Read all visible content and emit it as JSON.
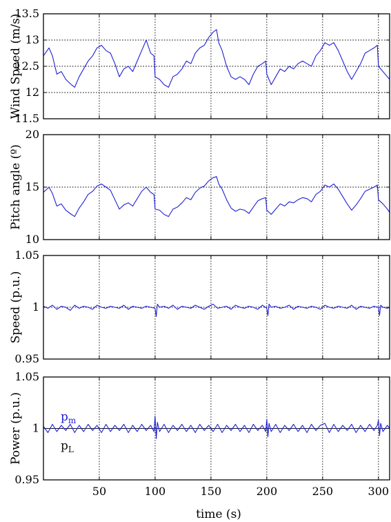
{
  "colors": {
    "series_blue": "#1f1fd6",
    "series_black": "#111111",
    "frame": "#000000"
  },
  "shared_xlabel": "time (s)",
  "chart_data": [
    {
      "type": "line",
      "title": "",
      "ylabel": "Wind Speed (m/s)",
      "xlabel": "",
      "xlim": [
        0,
        310
      ],
      "ylim": [
        11.5,
        13.5
      ],
      "x_ticks": [
        50,
        100,
        150,
        200,
        250,
        300
      ],
      "y_ticks": [
        11.5,
        12,
        12.5,
        13,
        13.5
      ],
      "y_tick_labels": [
        "11.5",
        "12",
        "12.5",
        "13",
        "13.5"
      ],
      "grid": true,
      "legend": null,
      "series": [
        {
          "color": "#1f1fd6",
          "x": [
            0,
            5,
            8,
            12,
            16,
            20,
            25,
            28,
            32,
            36,
            40,
            44,
            48,
            52,
            56,
            60,
            64,
            68,
            72,
            76,
            80,
            84,
            88,
            92,
            96,
            99,
            100,
            104,
            108,
            112,
            116,
            120,
            124,
            128,
            132,
            136,
            140,
            144,
            148,
            152,
            155,
            157,
            160,
            164,
            168,
            172,
            176,
            180,
            184,
            188,
            192,
            196,
            199,
            200,
            204,
            208,
            212,
            216,
            220,
            224,
            228,
            232,
            236,
            240,
            244,
            248,
            252,
            256,
            260,
            264,
            268,
            272,
            276,
            280,
            284,
            288,
            292,
            296,
            299,
            300,
            304,
            308,
            310
          ],
          "y": [
            12.7,
            12.85,
            12.7,
            12.35,
            12.4,
            12.25,
            12.15,
            12.1,
            12.3,
            12.45,
            12.6,
            12.7,
            12.85,
            12.9,
            12.8,
            12.75,
            12.55,
            12.3,
            12.45,
            12.5,
            12.4,
            12.6,
            12.8,
            13.0,
            12.75,
            12.7,
            12.3,
            12.25,
            12.15,
            12.1,
            12.3,
            12.35,
            12.45,
            12.6,
            12.55,
            12.75,
            12.85,
            12.9,
            13.05,
            13.15,
            13.2,
            12.95,
            12.8,
            12.5,
            12.3,
            12.25,
            12.3,
            12.25,
            12.15,
            12.35,
            12.5,
            12.55,
            12.6,
            12.35,
            12.15,
            12.3,
            12.45,
            12.4,
            12.5,
            12.45,
            12.55,
            12.6,
            12.55,
            12.5,
            12.7,
            12.8,
            12.95,
            12.9,
            12.95,
            12.8,
            12.6,
            12.4,
            12.25,
            12.4,
            12.55,
            12.75,
            12.8,
            12.85,
            12.9,
            12.5,
            12.4,
            12.3,
            12.25
          ]
        }
      ]
    },
    {
      "type": "line",
      "title": "",
      "ylabel": "Pitch angle (º)",
      "xlabel": "",
      "xlim": [
        0,
        310
      ],
      "ylim": [
        10,
        20
      ],
      "x_ticks": [
        50,
        100,
        150,
        200,
        250,
        300
      ],
      "y_ticks": [
        10,
        15,
        20
      ],
      "y_tick_labels": [
        "10",
        "15",
        "20"
      ],
      "grid": true,
      "legend": null,
      "series": [
        {
          "color": "#1f1fd6",
          "x": [
            0,
            5,
            8,
            12,
            16,
            20,
            25,
            28,
            32,
            36,
            40,
            44,
            48,
            52,
            56,
            60,
            64,
            68,
            72,
            76,
            80,
            84,
            88,
            92,
            96,
            99,
            100,
            104,
            108,
            112,
            116,
            120,
            124,
            128,
            132,
            136,
            140,
            144,
            148,
            152,
            155,
            157,
            160,
            164,
            168,
            172,
            176,
            180,
            184,
            188,
            192,
            196,
            199,
            200,
            204,
            208,
            212,
            216,
            220,
            224,
            228,
            232,
            236,
            240,
            244,
            248,
            252,
            256,
            260,
            264,
            268,
            272,
            276,
            280,
            284,
            288,
            292,
            296,
            299,
            300,
            304,
            308,
            310
          ],
          "y": [
            14.5,
            15.0,
            14.4,
            13.2,
            13.4,
            12.8,
            12.4,
            12.2,
            13.0,
            13.6,
            14.3,
            14.6,
            15.1,
            15.3,
            15.0,
            14.7,
            13.8,
            12.9,
            13.3,
            13.5,
            13.2,
            13.9,
            14.6,
            15.0,
            14.5,
            14.3,
            12.9,
            12.8,
            12.4,
            12.2,
            12.9,
            13.1,
            13.5,
            14.0,
            13.8,
            14.5,
            14.9,
            15.1,
            15.6,
            15.9,
            16.0,
            15.3,
            14.8,
            13.8,
            13.0,
            12.7,
            12.9,
            12.8,
            12.5,
            13.1,
            13.7,
            13.9,
            14.0,
            12.8,
            12.4,
            12.9,
            13.4,
            13.2,
            13.6,
            13.5,
            13.8,
            14.0,
            13.9,
            13.6,
            14.3,
            14.6,
            15.2,
            15.0,
            15.3,
            14.8,
            14.1,
            13.4,
            12.8,
            13.3,
            13.9,
            14.6,
            14.8,
            15.0,
            15.2,
            13.8,
            13.4,
            12.9,
            12.6
          ]
        }
      ]
    },
    {
      "type": "line",
      "title": "",
      "ylabel": "Speed (p.u.)",
      "xlabel": "",
      "xlim": [
        0,
        310
      ],
      "ylim": [
        0.95,
        1.05
      ],
      "x_ticks": [
        50,
        100,
        150,
        200,
        250,
        300
      ],
      "y_ticks": [
        0.95,
        1,
        1.05
      ],
      "y_tick_labels": [
        "0.95",
        "1",
        "1.05"
      ],
      "grid": true,
      "legend": null,
      "series": [
        {
          "color": "#1f1fd6",
          "x": [
            0,
            4,
            8,
            12,
            16,
            20,
            24,
            28,
            32,
            36,
            40,
            44,
            48,
            52,
            56,
            60,
            64,
            68,
            72,
            76,
            80,
            84,
            88,
            92,
            96,
            100,
            101,
            102,
            104,
            108,
            112,
            116,
            120,
            124,
            128,
            132,
            136,
            140,
            144,
            148,
            152,
            156,
            160,
            164,
            168,
            172,
            176,
            180,
            184,
            188,
            192,
            196,
            200,
            201,
            202,
            204,
            208,
            212,
            216,
            220,
            224,
            228,
            232,
            236,
            240,
            244,
            248,
            252,
            256,
            260,
            264,
            268,
            272,
            276,
            280,
            284,
            288,
            292,
            296,
            300,
            301,
            302,
            304,
            308,
            310
          ],
          "y": [
            1.001,
            0.999,
            1.002,
            0.998,
            1.001,
            1.0,
            0.997,
            1.002,
            0.999,
            1.001,
            1.0,
            0.998,
            1.002,
            1.0,
            0.999,
            1.001,
            1.0,
            0.999,
            1.002,
            0.998,
            1.001,
            1.0,
            0.999,
            1.001,
            1.0,
            0.999,
            0.991,
            1.003,
            1.0,
            1.001,
            0.999,
            1.002,
            0.998,
            1.001,
            1.0,
            0.999,
            1.002,
            1.0,
            0.998,
            1.001,
            1.003,
            0.999,
            1.0,
            1.001,
            0.998,
            1.002,
            1.0,
            0.999,
            1.001,
            1.0,
            0.998,
            1.002,
            0.999,
            0.992,
            1.003,
            1.0,
            1.001,
            0.999,
            1.0,
            1.002,
            0.998,
            1.001,
            1.0,
            0.999,
            1.001,
            1.0,
            0.998,
            1.002,
            1.0,
            0.999,
            1.001,
            1.0,
            0.999,
            1.002,
            0.998,
            1.001,
            1.0,
            0.999,
            1.001,
            1.0,
            0.992,
            1.002,
            1.0,
            0.999,
            1.0
          ]
        }
      ]
    },
    {
      "type": "line",
      "title": "",
      "ylabel": "Power (p.u.)",
      "xlabel": "time (s)",
      "xlim": [
        0,
        310
      ],
      "ylim": [
        0.95,
        1.05
      ],
      "x_ticks": [
        50,
        100,
        150,
        200,
        250,
        300
      ],
      "x_tick_labels": [
        "50",
        "100",
        "150",
        "200",
        "250",
        "300"
      ],
      "y_ticks": [
        0.95,
        1,
        1.05
      ],
      "y_tick_labels": [
        "0.95",
        "1",
        "1.05"
      ],
      "grid": true,
      "legend": "inside-left",
      "legend_entries": [
        "p",
        "p"
      ],
      "legend_subscripts": [
        "m",
        "L"
      ],
      "series": [
        {
          "color": "#111111",
          "x": [
            0,
            310
          ],
          "y": [
            1.0,
            1.0
          ]
        },
        {
          "color": "#1f1fd6",
          "x": [
            0,
            4,
            8,
            12,
            16,
            20,
            24,
            28,
            32,
            36,
            40,
            44,
            48,
            52,
            56,
            60,
            64,
            68,
            72,
            76,
            80,
            84,
            88,
            92,
            96,
            99,
            100,
            101,
            102,
            104,
            108,
            112,
            116,
            120,
            124,
            128,
            132,
            136,
            140,
            144,
            148,
            152,
            156,
            160,
            164,
            168,
            172,
            176,
            180,
            184,
            188,
            192,
            196,
            199,
            200,
            201,
            202,
            204,
            208,
            212,
            216,
            220,
            224,
            228,
            232,
            236,
            240,
            244,
            248,
            252,
            256,
            260,
            264,
            268,
            272,
            276,
            280,
            284,
            288,
            292,
            296,
            299,
            300,
            301,
            302,
            304,
            308,
            310
          ],
          "y": [
            1.002,
            0.996,
            1.004,
            0.997,
            1.003,
            0.998,
            1.004,
            0.996,
            1.003,
            0.997,
            1.004,
            0.998,
            1.003,
            0.996,
            1.004,
            0.997,
            1.003,
            0.998,
            1.004,
            0.996,
            1.003,
            0.997,
            1.004,
            0.998,
            1.003,
            0.997,
            1.012,
            0.99,
            1.006,
            0.997,
            1.004,
            0.996,
            1.003,
            0.998,
            1.004,
            0.997,
            1.003,
            0.996,
            1.004,
            0.998,
            1.003,
            0.997,
            1.004,
            0.996,
            1.003,
            0.998,
            1.004,
            0.997,
            1.003,
            0.996,
            1.004,
            0.998,
            1.003,
            0.997,
            1.009,
            0.992,
            1.005,
            0.997,
            1.004,
            0.996,
            1.003,
            0.998,
            1.004,
            0.997,
            1.003,
            0.996,
            1.004,
            0.998,
            1.003,
            1.005,
            0.996,
            1.004,
            0.997,
            1.003,
            0.998,
            1.004,
            0.996,
            1.003,
            0.997,
            1.004,
            0.998,
            1.003,
            1.008,
            0.993,
            1.005,
            0.997,
            1.003,
            1.0
          ]
        }
      ]
    }
  ]
}
